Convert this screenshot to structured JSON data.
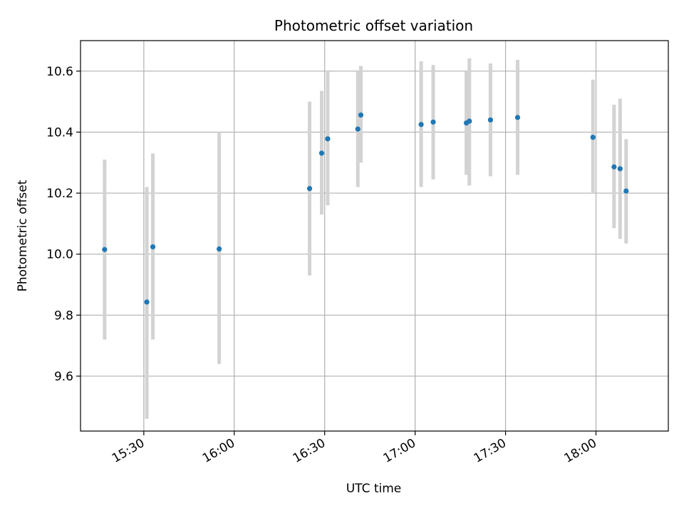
{
  "chart_data": {
    "type": "scatter",
    "title": "Photometric offset variation",
    "xlabel": "UTC time",
    "ylabel": "Photometric offset",
    "x_ticks": [
      "15:30",
      "16:00",
      "16:30",
      "17:00",
      "17:30",
      "18:00"
    ],
    "y_ticks": [
      "9.6",
      "9.8",
      "10.0",
      "10.2",
      "10.4",
      "10.6"
    ],
    "xlim": [
      "15:09",
      "18:24"
    ],
    "ylim": [
      9.42,
      10.7
    ],
    "grid": true,
    "point_color": "#1f77b4",
    "errorbar_color": "#d3d3d3",
    "points": [
      {
        "x": "15:17",
        "y": 10.015,
        "lo": 9.72,
        "hi": 10.31
      },
      {
        "x": "15:31",
        "y": 9.843,
        "lo": 9.46,
        "hi": 10.22
      },
      {
        "x": "15:33",
        "y": 10.024,
        "lo": 9.72,
        "hi": 10.33
      },
      {
        "x": "15:55",
        "y": 10.017,
        "lo": 9.64,
        "hi": 10.4
      },
      {
        "x": "16:25",
        "y": 10.215,
        "lo": 9.93,
        "hi": 10.5
      },
      {
        "x": "16:29",
        "y": 10.331,
        "lo": 10.13,
        "hi": 10.535
      },
      {
        "x": "16:31",
        "y": 10.378,
        "lo": 10.16,
        "hi": 10.6
      },
      {
        "x": "16:41",
        "y": 10.41,
        "lo": 10.22,
        "hi": 10.6
      },
      {
        "x": "16:42",
        "y": 10.456,
        "lo": 10.3,
        "hi": 10.617
      },
      {
        "x": "17:02",
        "y": 10.425,
        "lo": 10.22,
        "hi": 10.632
      },
      {
        "x": "17:06",
        "y": 10.433,
        "lo": 10.245,
        "hi": 10.62
      },
      {
        "x": "17:17",
        "y": 10.43,
        "lo": 10.26,
        "hi": 10.6
      },
      {
        "x": "17:18",
        "y": 10.436,
        "lo": 10.225,
        "hi": 10.642
      },
      {
        "x": "17:25",
        "y": 10.44,
        "lo": 10.255,
        "hi": 10.625
      },
      {
        "x": "17:34",
        "y": 10.448,
        "lo": 10.26,
        "hi": 10.637
      },
      {
        "x": "17:59",
        "y": 10.383,
        "lo": 10.2,
        "hi": 10.572
      },
      {
        "x": "18:06",
        "y": 10.286,
        "lo": 10.085,
        "hi": 10.49
      },
      {
        "x": "18:08",
        "y": 10.28,
        "lo": 10.05,
        "hi": 10.51
      },
      {
        "x": "18:10",
        "y": 10.207,
        "lo": 10.035,
        "hi": 10.377
      }
    ]
  }
}
